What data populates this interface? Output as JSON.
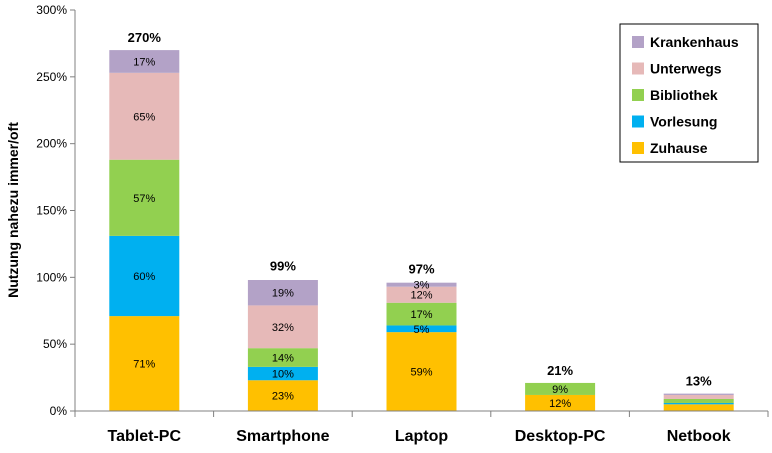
{
  "chart_data": {
    "type": "bar",
    "stacked": true,
    "ylabel": "Nutzung nahezu immer/oft",
    "xlabel": "",
    "ylim": [
      0,
      300
    ],
    "yticks": [
      "0%",
      "50%",
      "100%",
      "150%",
      "200%",
      "250%",
      "300%"
    ],
    "ytick_values": [
      0,
      50,
      100,
      150,
      200,
      250,
      300
    ],
    "categories": [
      "Tablet-PC",
      "Smartphone",
      "Laptop",
      "Desktop-PC",
      "Netbook"
    ],
    "series": [
      {
        "name": "Zuhause",
        "color": "#FFC000",
        "values": [
          71,
          23,
          59,
          12,
          5
        ],
        "labels": [
          "71%",
          "23%",
          "59%",
          "12%",
          ""
        ]
      },
      {
        "name": "Vorlesung",
        "color": "#00B0F0",
        "values": [
          60,
          10,
          5,
          0,
          1
        ],
        "labels": [
          "60%",
          "10%",
          "5%",
          "",
          ""
        ]
      },
      {
        "name": "Bibliothek",
        "color": "#92D050",
        "values": [
          57,
          14,
          17,
          9,
          3
        ],
        "labels": [
          "57%",
          "14%",
          "17%",
          "9%",
          ""
        ]
      },
      {
        "name": "Unterwegs",
        "color": "#E6B9B8",
        "values": [
          65,
          32,
          12,
          0,
          3
        ],
        "labels": [
          "65%",
          "32%",
          "12%",
          "",
          ""
        ]
      },
      {
        "name": "Krankenhaus",
        "color": "#B3A2C7",
        "values": [
          17,
          19,
          3,
          0,
          1
        ],
        "labels": [
          "17%",
          "19%",
          "3%",
          "",
          ""
        ]
      }
    ],
    "totals": [
      {
        "value": 270,
        "label": "270%"
      },
      {
        "value": 99,
        "label": "99%"
      },
      {
        "value": 97,
        "label": "97%"
      },
      {
        "value": 21,
        "label": "21%"
      },
      {
        "value": 13,
        "label": "13%"
      }
    ],
    "legend": {
      "position": "top-right",
      "entries": [
        "Krankenhaus",
        "Unterwegs",
        "Bibliothek",
        "Vorlesung",
        "Zuhause"
      ]
    }
  }
}
